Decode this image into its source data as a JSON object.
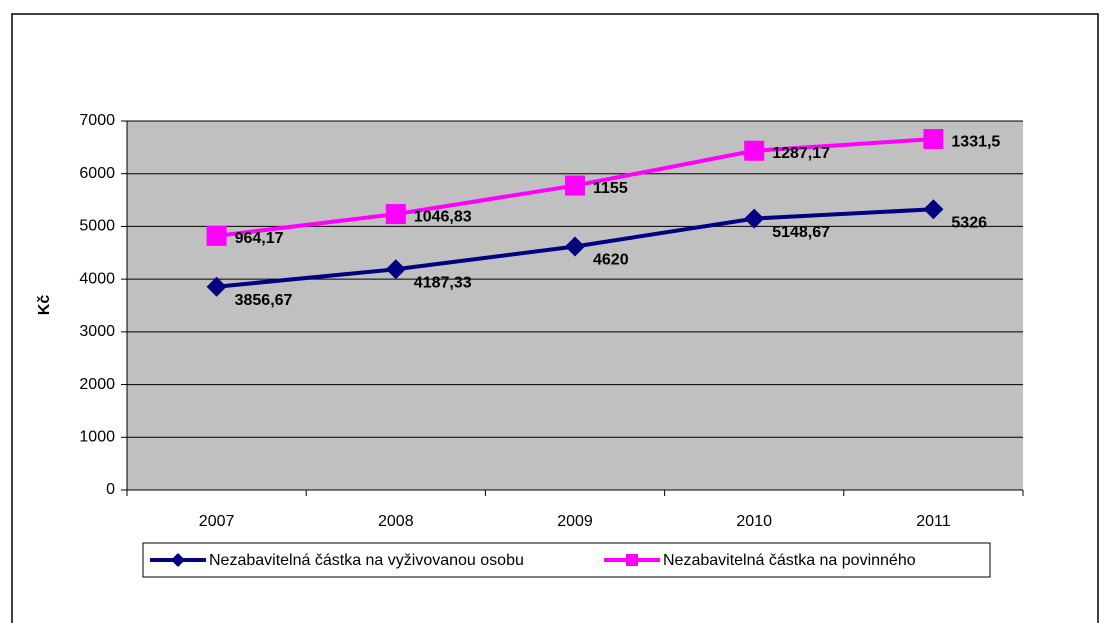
{
  "chart_data": {
    "type": "line",
    "stacked": true,
    "categories": [
      "2007",
      "2008",
      "2009",
      "2010",
      "2011"
    ],
    "y_label": "Kč",
    "ylim": [
      0,
      7000
    ],
    "yticks": [
      0,
      1000,
      2000,
      3000,
      4000,
      5000,
      6000,
      7000
    ],
    "grid": true,
    "legend": "bottom",
    "series": [
      {
        "name": "Nezabavitelná částka na vyživovanou osobu",
        "color": "#000080",
        "marker": "diamond",
        "values": [
          3856.67,
          4187.33,
          4620,
          5148.67,
          5326
        ],
        "value_labels": [
          "3856,67",
          "4187,33",
          "4620",
          "5148,67",
          "5326"
        ]
      },
      {
        "name": "Nezabavitelná částka na povinného",
        "color": "#ff00ff",
        "marker": "square",
        "values": [
          964.17,
          1046.83,
          1155,
          1287.17,
          1331.5
        ],
        "value_labels": [
          "964,17",
          "1046,83",
          "1155",
          "1287,17",
          "1331,5"
        ]
      }
    ]
  }
}
